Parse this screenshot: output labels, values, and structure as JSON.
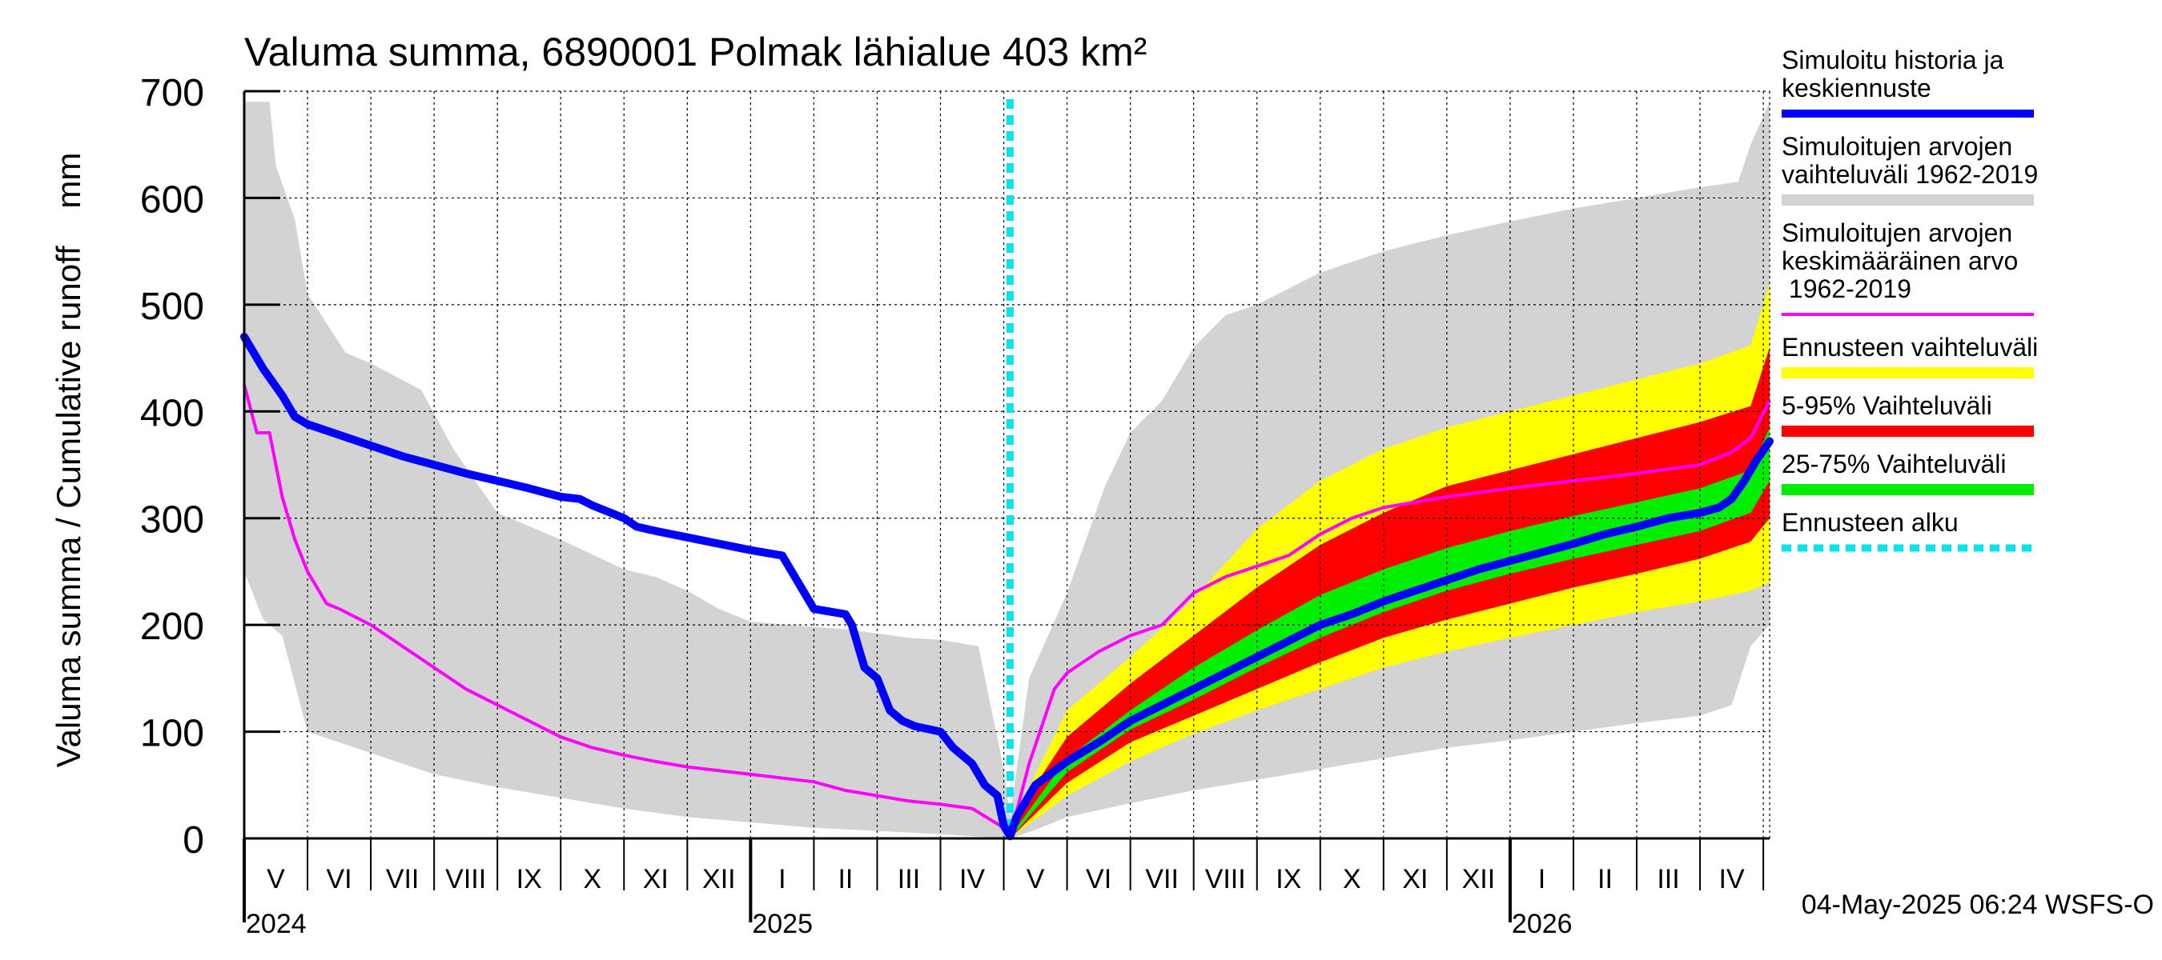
{
  "chart_data": {
    "type": "area",
    "title": "Valuma summa, 6890001 Polmak lähialue 403 km²",
    "ylabel": "Valuma summa / Cumulative runoff    mm",
    "xlabel": "",
    "ylim": [
      0,
      700
    ],
    "yticks": [
      0,
      100,
      200,
      300,
      400,
      500,
      600,
      700
    ],
    "x_unit": "months since 2024-04-01",
    "xlim": [
      1.0,
      25.1
    ],
    "forecast_start": 13.1,
    "footer": "04-May-2025 06:24 WSFS-O",
    "month_labels": [
      {
        "label": "V",
        "x": 1.5
      },
      {
        "label": "VI",
        "x": 2.5
      },
      {
        "label": "VII",
        "x": 3.5
      },
      {
        "label": "VIII",
        "x": 4.5
      },
      {
        "label": "IX",
        "x": 5.5
      },
      {
        "label": "X",
        "x": 6.5
      },
      {
        "label": "XI",
        "x": 7.5
      },
      {
        "label": "XII",
        "x": 8.5
      },
      {
        "label": "I",
        "x": 9.5
      },
      {
        "label": "II",
        "x": 10.5
      },
      {
        "label": "III",
        "x": 11.5
      },
      {
        "label": "IV",
        "x": 12.5
      },
      {
        "label": "V",
        "x": 13.5
      },
      {
        "label": "VI",
        "x": 14.5
      },
      {
        "label": "VII",
        "x": 15.5
      },
      {
        "label": "VIII",
        "x": 16.5
      },
      {
        "label": "IX",
        "x": 17.5
      },
      {
        "label": "X",
        "x": 18.5
      },
      {
        "label": "XI",
        "x": 19.5
      },
      {
        "label": "XII",
        "x": 20.5
      },
      {
        "label": "I",
        "x": 21.5
      },
      {
        "label": "II",
        "x": 22.5
      },
      {
        "label": "III",
        "x": 23.5
      },
      {
        "label": "IV",
        "x": 24.5
      }
    ],
    "year_labels": [
      {
        "label": "2024",
        "x": 1.0
      },
      {
        "label": "2025",
        "x": 9.0
      },
      {
        "label": "2026",
        "x": 21.0
      }
    ],
    "legend": [
      {
        "label": "Simuloitu historia ja\nkeskiennuste",
        "color": "#0000ff",
        "style": "line"
      },
      {
        "label": "Simuloitujen arvojen\nvaihteluväli 1962-2019",
        "color": "#d3d3d3",
        "style": "band"
      },
      {
        "label": "Simuloitujen arvojen\nkeskimääräinen arvo\n   1962-2019",
        "color": "#ff00ff",
        "style": "thin"
      },
      {
        "label": "Ennusteen vaihteluväli",
        "color": "#ffff00",
        "style": "band"
      },
      {
        "label": "5-95% Vaihteluväli",
        "color": "#ff0000",
        "style": "band"
      },
      {
        "label": "25-75% Vaihteluväli",
        "color": "#00ee00",
        "style": "band"
      },
      {
        "label": "Ennusteen alku",
        "color": "#00e5ee",
        "style": "dotted"
      }
    ],
    "series": [
      {
        "name": "Simuloitujen arvojen vaihteluväli 1962-2019 (upper)",
        "color": "#d3d3d3",
        "x": [
          1.0,
          1.4,
          1.5,
          1.8,
          2.0,
          2.6,
          3.0,
          3.8,
          4.3,
          5.0,
          6.0,
          7.0,
          7.5,
          8.0,
          8.5,
          9.0,
          9.6,
          10.0,
          10.5,
          11.0,
          11.5,
          12.0,
          12.6,
          13.0,
          13.1,
          13.4,
          14.0,
          14.6,
          15.0,
          15.5,
          16.0,
          16.5,
          17.0,
          17.5,
          18.0,
          19.0,
          20.0,
          21.0,
          22.0,
          23.0,
          24.0,
          24.6,
          24.8,
          25.1
        ],
        "values": [
          690,
          690,
          630,
          580,
          510,
          455,
          445,
          420,
          365,
          305,
          280,
          252,
          245,
          232,
          215,
          203,
          200,
          198,
          196,
          192,
          188,
          186,
          180,
          65,
          20,
          150,
          230,
          330,
          380,
          410,
          460,
          490,
          500,
          515,
          530,
          550,
          565,
          578,
          590,
          600,
          610,
          615,
          650,
          690
        ]
      },
      {
        "name": "Simuloitujen arvojen vaihteluväli 1962-2019 (lower)",
        "color": "#d3d3d3",
        "x": [
          1.0,
          1.3,
          1.6,
          2.0,
          3.0,
          4.0,
          5.0,
          6.0,
          7.0,
          8.0,
          9.0,
          10.0,
          11.0,
          12.0,
          12.8,
          13.1,
          13.5,
          14.0,
          15.0,
          16.0,
          17.0,
          18.0,
          19.0,
          20.0,
          21.0,
          22.0,
          23.0,
          24.0,
          24.5,
          24.8,
          25.1
        ],
        "values": [
          250,
          205,
          190,
          100,
          80,
          60,
          48,
          38,
          28,
          20,
          15,
          10,
          7,
          4,
          1,
          0,
          8,
          20,
          33,
          45,
          55,
          65,
          75,
          85,
          92,
          100,
          108,
          115,
          125,
          180,
          200
        ]
      },
      {
        "name": "Ennusteen vaihteluväli (upper)",
        "color": "#ffff00",
        "x": [
          13.1,
          13.5,
          14.0,
          15.0,
          16.0,
          17.0,
          18.0,
          19.0,
          20.0,
          21.0,
          22.0,
          23.0,
          24.0,
          24.8,
          25.1
        ],
        "values": [
          2,
          60,
          120,
          170,
          225,
          290,
          335,
          365,
          385,
          400,
          415,
          430,
          445,
          462,
          520
        ]
      },
      {
        "name": "Ennusteen vaihteluväli (lower)",
        "color": "#ffff00",
        "x": [
          13.1,
          14.0,
          15.0,
          16.0,
          17.0,
          18.0,
          19.0,
          20.0,
          21.0,
          22.0,
          23.0,
          24.0,
          24.8,
          25.1
        ],
        "values": [
          0,
          40,
          72,
          98,
          120,
          140,
          160,
          175,
          188,
          200,
          212,
          222,
          232,
          240
        ]
      },
      {
        "name": "5-95% Vaihteluväli (upper)",
        "color": "#ff0000",
        "x": [
          13.1,
          13.5,
          14.0,
          15.0,
          16.0,
          17.0,
          18.0,
          19.0,
          20.0,
          21.0,
          22.0,
          23.0,
          24.0,
          24.8,
          25.1
        ],
        "values": [
          2,
          50,
          95,
          145,
          190,
          235,
          275,
          305,
          330,
          345,
          360,
          375,
          390,
          405,
          460
        ]
      },
      {
        "name": "5-95% Vaihteluväli (lower)",
        "color": "#ff0000",
        "x": [
          13.1,
          14.0,
          15.0,
          16.0,
          17.0,
          18.0,
          19.0,
          20.0,
          21.0,
          22.0,
          23.0,
          24.0,
          24.8,
          25.1
        ],
        "values": [
          0,
          52,
          90,
          115,
          140,
          165,
          188,
          205,
          220,
          235,
          248,
          262,
          278,
          300
        ]
      },
      {
        "name": "25-75% Vaihteluväli (upper)",
        "color": "#00ee00",
        "x": [
          13.1,
          14.0,
          15.0,
          16.0,
          17.0,
          18.0,
          19.0,
          20.0,
          21.0,
          22.0,
          23.0,
          24.0,
          24.8,
          25.1
        ],
        "values": [
          2,
          75,
          120,
          160,
          195,
          228,
          252,
          272,
          288,
          302,
          315,
          328,
          345,
          385
        ]
      },
      {
        "name": "25-75% Vaihteluväli (lower)",
        "color": "#00ee00",
        "x": [
          13.1,
          14.0,
          15.0,
          16.0,
          17.0,
          18.0,
          19.0,
          20.0,
          21.0,
          22.0,
          23.0,
          24.0,
          24.8,
          25.1
        ],
        "values": [
          0,
          62,
          102,
          130,
          160,
          188,
          212,
          232,
          248,
          262,
          275,
          288,
          305,
          335
        ]
      },
      {
        "name": "Simuloitujen arvojen keskimääräinen arvo 1962-2019",
        "color": "#ff00ff",
        "x": [
          1.0,
          1.2,
          1.4,
          1.6,
          1.8,
          2.0,
          2.3,
          2.5,
          3.0,
          3.5,
          4.0,
          4.5,
          5.0,
          5.5,
          6.0,
          6.5,
          7.0,
          7.5,
          8.0,
          9.0,
          10.0,
          10.5,
          11.0,
          11.5,
          12.0,
          12.5,
          13.0,
          13.1,
          13.4,
          13.8,
          14.0,
          14.5,
          15.0,
          15.5,
          16.0,
          16.5,
          17.0,
          17.5,
          18.0,
          18.5,
          19.0,
          20.0,
          21.0,
          22.0,
          23.0,
          24.0,
          24.5,
          24.8,
          25.1
        ],
        "values": [
          425,
          380,
          380,
          320,
          280,
          250,
          220,
          215,
          200,
          180,
          160,
          140,
          125,
          110,
          95,
          85,
          78,
          72,
          67,
          60,
          53,
          45,
          40,
          35,
          32,
          28,
          10,
          2,
          70,
          140,
          155,
          175,
          190,
          200,
          230,
          245,
          255,
          265,
          285,
          300,
          310,
          320,
          328,
          335,
          342,
          350,
          362,
          375,
          410
        ]
      },
      {
        "name": "Simuloitu historia ja keskiennuste",
        "color": "#0000ff",
        "x": [
          1.0,
          1.3,
          1.6,
          1.8,
          2.0,
          2.5,
          3.0,
          3.5,
          4.0,
          4.5,
          5.0,
          5.5,
          6.0,
          6.3,
          6.5,
          7.0,
          7.2,
          7.5,
          8.0,
          8.5,
          9.0,
          9.5,
          10.0,
          10.5,
          10.6,
          10.8,
          11.0,
          11.2,
          11.4,
          11.6,
          12.0,
          12.2,
          12.5,
          12.7,
          12.9,
          13.0,
          13.1,
          13.2,
          13.5,
          14.0,
          14.5,
          15.0,
          15.5,
          16.0,
          16.5,
          17.0,
          17.5,
          18.0,
          18.5,
          19.0,
          19.5,
          20.0,
          20.5,
          21.0,
          21.5,
          22.0,
          22.5,
          23.0,
          23.5,
          24.0,
          24.3,
          24.5,
          24.7,
          24.9,
          25.1
        ],
        "values": [
          470,
          440,
          415,
          395,
          388,
          378,
          368,
          358,
          350,
          342,
          335,
          328,
          320,
          318,
          312,
          300,
          292,
          288,
          282,
          276,
          270,
          265,
          215,
          210,
          200,
          160,
          150,
          120,
          110,
          105,
          100,
          85,
          70,
          50,
          40,
          12,
          2,
          20,
          50,
          72,
          90,
          110,
          125,
          140,
          155,
          170,
          185,
          200,
          210,
          222,
          232,
          242,
          252,
          260,
          268,
          276,
          285,
          292,
          300,
          305,
          310,
          318,
          335,
          355,
          372
        ]
      }
    ]
  }
}
